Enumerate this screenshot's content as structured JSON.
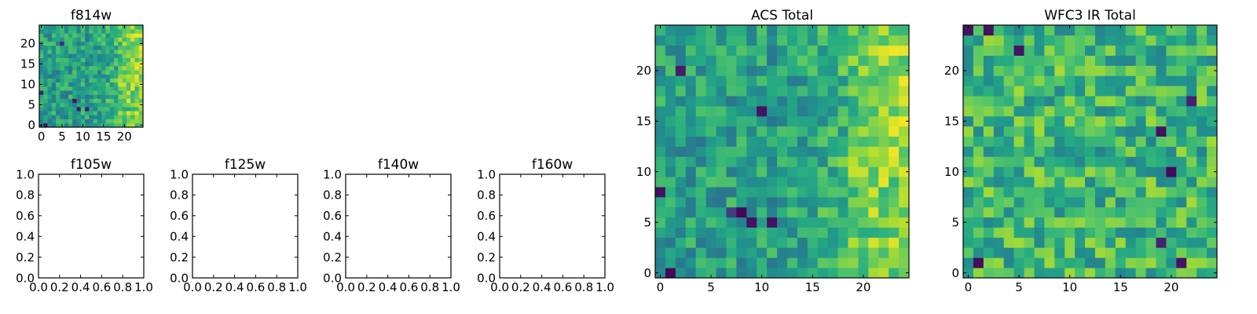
{
  "chart_data": [
    {
      "type": "heatmap",
      "title": "f814w",
      "xlabel": "",
      "ylabel": "",
      "grid_size": [
        25,
        25
      ],
      "xlim": [
        -0.5,
        24.5
      ],
      "ylim": [
        -0.5,
        24.5
      ],
      "xticks": [
        0,
        5,
        10,
        15,
        20
      ],
      "yticks": [
        0,
        5,
        10,
        15,
        20
      ],
      "colormap": "viridis",
      "seed": 11,
      "pattern": "acs",
      "hotspots": [
        {
          "x": 8,
          "y": 6,
          "v": 0.06
        },
        {
          "x": 9,
          "y": 4,
          "v": 0.08
        },
        {
          "x": 11,
          "y": 4,
          "v": 0.08
        },
        {
          "x": 5,
          "y": 20,
          "v": 0.12
        },
        {
          "x": 1,
          "y": 0,
          "v": 0.05
        },
        {
          "x": 0,
          "y": 8,
          "v": 0.1
        }
      ]
    },
    {
      "type": "heatmap",
      "title": "f105w",
      "xlabel": "",
      "ylabel": "",
      "empty": true,
      "xlim": [
        0,
        1
      ],
      "ylim": [
        0,
        1
      ],
      "xticks": [
        "0.0",
        "0.2",
        "0.4",
        "0.6",
        "0.8",
        "1.0"
      ],
      "yticks": [
        "0.0",
        "0.2",
        "0.4",
        "0.6",
        "0.8",
        "1.0"
      ]
    },
    {
      "type": "heatmap",
      "title": "f125w",
      "xlabel": "",
      "ylabel": "",
      "empty": true,
      "xlim": [
        0,
        1
      ],
      "ylim": [
        0,
        1
      ],
      "xticks": [
        "0.0",
        "0.2",
        "0.4",
        "0.6",
        "0.8",
        "1.0"
      ],
      "yticks": [
        "0.0",
        "0.2",
        "0.4",
        "0.6",
        "0.8",
        "1.0"
      ]
    },
    {
      "type": "heatmap",
      "title": "f140w",
      "xlabel": "",
      "ylabel": "",
      "empty": true,
      "xlim": [
        0,
        1
      ],
      "ylim": [
        0,
        1
      ],
      "xticks": [
        "0.0",
        "0.2",
        "0.4",
        "0.6",
        "0.8",
        "1.0"
      ],
      "yticks": [
        "0.0",
        "0.2",
        "0.4",
        "0.6",
        "0.8",
        "1.0"
      ]
    },
    {
      "type": "heatmap",
      "title": "f160w",
      "xlabel": "",
      "ylabel": "",
      "empty": true,
      "xlim": [
        0,
        1
      ],
      "ylim": [
        0,
        1
      ],
      "xticks": [
        "0.0",
        "0.2",
        "0.4",
        "0.6",
        "0.8",
        "1.0"
      ],
      "yticks": [
        "0.0",
        "0.2",
        "0.4",
        "0.6",
        "0.8",
        "1.0"
      ]
    },
    {
      "type": "heatmap",
      "title": "ACS Total",
      "xlabel": "",
      "ylabel": "",
      "grid_size": [
        25,
        25
      ],
      "xlim": [
        -0.5,
        24.5
      ],
      "ylim": [
        -0.5,
        24.5
      ],
      "xticks": [
        0,
        5,
        10,
        15,
        20
      ],
      "yticks": [
        0,
        5,
        10,
        15,
        20
      ],
      "colormap": "viridis",
      "seed": 11,
      "pattern": "acs",
      "hotspots": [
        {
          "x": 8,
          "y": 6,
          "v": 0.02
        },
        {
          "x": 9,
          "y": 5,
          "v": 0.05
        },
        {
          "x": 11,
          "y": 5,
          "v": 0.05
        },
        {
          "x": 10,
          "y": 16,
          "v": 0.05
        },
        {
          "x": 2,
          "y": 20,
          "v": 0.08
        },
        {
          "x": 1,
          "y": 0,
          "v": 0.02
        },
        {
          "x": 0,
          "y": 8,
          "v": 0.05
        },
        {
          "x": 7,
          "y": 6,
          "v": 0.18
        }
      ]
    },
    {
      "type": "heatmap",
      "title": "WFC3 IR Total",
      "xlabel": "",
      "ylabel": "",
      "grid_size": [
        25,
        25
      ],
      "xlim": [
        -0.5,
        24.5
      ],
      "ylim": [
        -0.5,
        24.5
      ],
      "xticks": [
        0,
        5,
        10,
        15,
        20
      ],
      "yticks": [
        0,
        5,
        10,
        15,
        20
      ],
      "colormap": "viridis",
      "seed": 29,
      "pattern": "ir",
      "hotspots": [
        {
          "x": 0,
          "y": 24,
          "v": 0.05
        },
        {
          "x": 2,
          "y": 24,
          "v": 0.05
        },
        {
          "x": 5,
          "y": 22,
          "v": 0.05
        },
        {
          "x": 19,
          "y": 14,
          "v": 0.05
        },
        {
          "x": 20,
          "y": 10,
          "v": 0.03
        },
        {
          "x": 19,
          "y": 3,
          "v": 0.1
        },
        {
          "x": 21,
          "y": 1,
          "v": 0.05
        },
        {
          "x": 1,
          "y": 1,
          "v": 0.03
        },
        {
          "x": 22,
          "y": 17,
          "v": 0.1
        }
      ]
    }
  ]
}
